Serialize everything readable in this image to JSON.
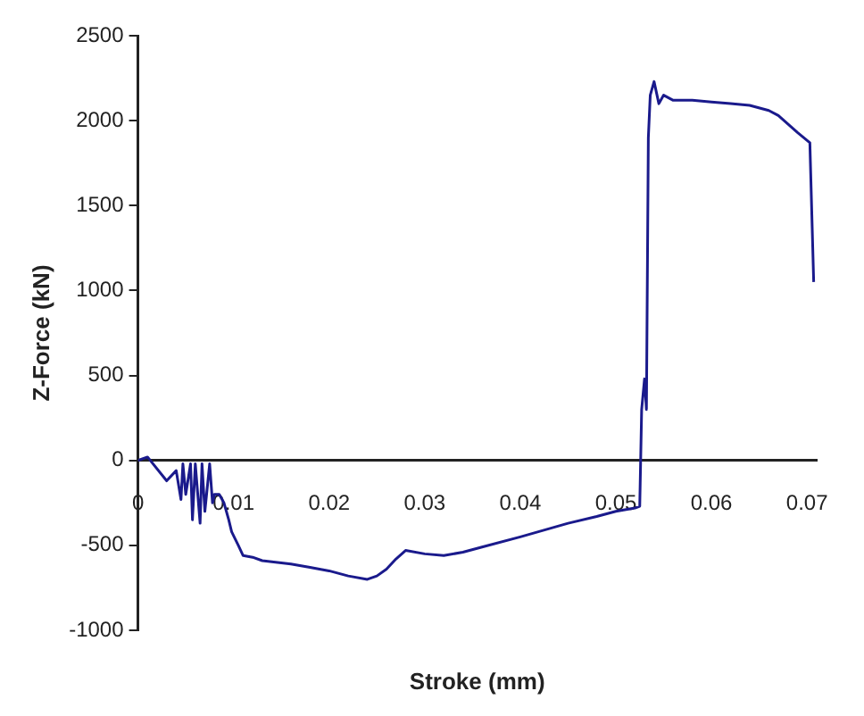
{
  "chart_data": {
    "type": "line",
    "xlabel": "Stroke (mm)",
    "ylabel": "Z-Force (kN)",
    "x": [
      0,
      0.001,
      0.003,
      0.004,
      0.0045,
      0.0047,
      0.005,
      0.0055,
      0.0057,
      0.006,
      0.0065,
      0.0067,
      0.007,
      0.0075,
      0.0078,
      0.008,
      0.0085,
      0.009,
      0.0095,
      0.0098,
      0.0105,
      0.011,
      0.012,
      0.013,
      0.016,
      0.018,
      0.02,
      0.022,
      0.024,
      0.025,
      0.026,
      0.027,
      0.028,
      0.03,
      0.032,
      0.034,
      0.036,
      0.04,
      0.045,
      0.048,
      0.05,
      0.052,
      0.0525,
      0.0527,
      0.053,
      0.0532,
      0.0534,
      0.0536,
      0.054,
      0.0545,
      0.055,
      0.056,
      0.058,
      0.06,
      0.062,
      0.064,
      0.066,
      0.067,
      0.068,
      0.069,
      0.0703,
      0.0707
    ],
    "series": [
      {
        "color": "#1a1a8c",
        "values": [
          0,
          20,
          -120,
          -60,
          -230,
          -20,
          -200,
          -20,
          -350,
          -20,
          -370,
          -20,
          -300,
          -20,
          -250,
          -200,
          -200,
          -250,
          -350,
          -420,
          -500,
          -560,
          -570,
          -590,
          -610,
          -630,
          -650,
          -680,
          -700,
          -680,
          -640,
          -580,
          -530,
          -550,
          -560,
          -540,
          -510,
          -450,
          -370,
          -330,
          -300,
          -280,
          -270,
          300,
          480,
          300,
          1900,
          2150,
          2230,
          2100,
          2150,
          2120,
          2120,
          2110,
          2100,
          2090,
          2060,
          2030,
          1980,
          1930,
          1870,
          1050
        ]
      }
    ],
    "xlim": [
      0,
      0.071
    ],
    "xticks": [
      0,
      0.01,
      0.02,
      0.03,
      0.04,
      0.05,
      0.06,
      0.07
    ],
    "ylim": [
      -1000,
      2500
    ],
    "yticks": [
      -1000,
      -500,
      0,
      500,
      1000,
      1500,
      2000,
      2500
    ],
    "grid": false,
    "legend": false
  }
}
